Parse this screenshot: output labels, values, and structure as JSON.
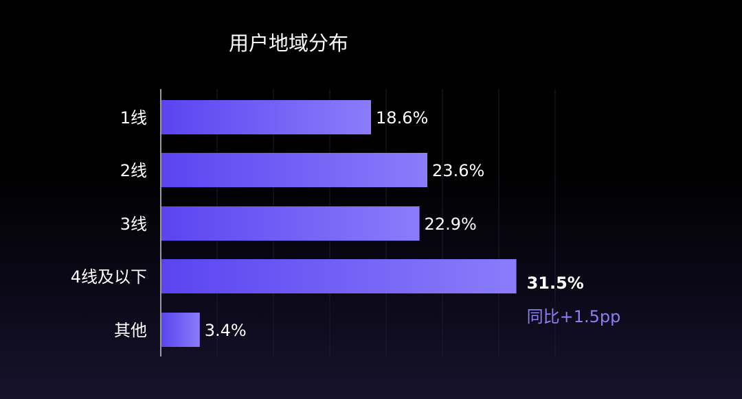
{
  "chart_data": {
    "type": "bar",
    "orientation": "horizontal",
    "title": "用户地域分布",
    "categories": [
      "1线",
      "2线",
      "3线",
      "4线及以下",
      "其他"
    ],
    "values": [
      18.6,
      23.6,
      22.9,
      31.5,
      3.4
    ],
    "value_labels": [
      "18.6%",
      "23.6%",
      "22.9%",
      "31.5%",
      "3.4%"
    ],
    "highlight_index": 3,
    "annotation": "同比+1.5pp",
    "xlim": [
      0,
      35
    ],
    "grid": true,
    "legend": "none"
  },
  "colors": {
    "bar_start": "#5b44f0",
    "bar_end": "#8a7cfb",
    "annotation": "#8b7ff2",
    "gridline": "#1e1b30",
    "axis": "#9a9aa6",
    "text": "#ffffff"
  }
}
